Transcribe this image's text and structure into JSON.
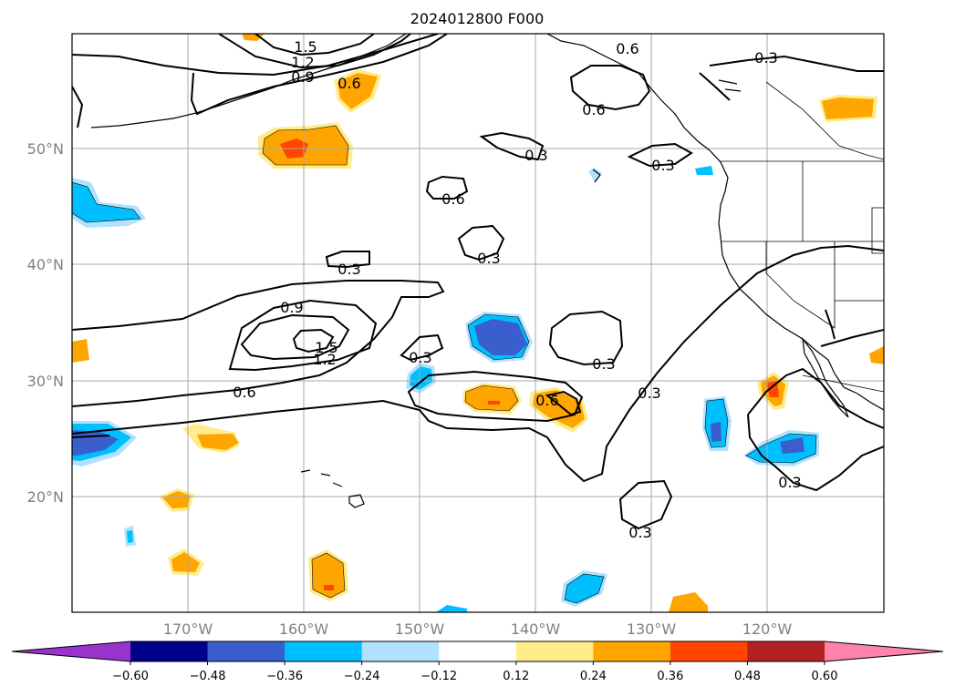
{
  "title": "2024012800 F000",
  "map": {
    "lat_labels": [
      "50°N",
      "40°N",
      "30°N",
      "20°N"
    ],
    "lon_labels": [
      "170°W",
      "160°W",
      "150°W",
      "140°W",
      "130°W",
      "120°W"
    ],
    "gridlines": true
  },
  "colorbar": {
    "orientation": "horizontal",
    "extend": "both",
    "ticks": [
      "−0.60",
      "−0.48",
      "−0.36",
      "−0.24",
      "−0.12",
      "0.12",
      "0.24",
      "0.36",
      "0.48",
      "0.60"
    ],
    "colors": [
      "#9933cc",
      "#00008b",
      "#3a5fcd",
      "#00bfff",
      "#b0e2ff",
      "#ffffff",
      "#ffec8b",
      "#ffa500",
      "#ff4500",
      "#b22222",
      "#ff82ab"
    ]
  },
  "contours": {
    "line_color": "#000000",
    "labels": [
      "1.5",
      "1.2",
      "0.9",
      "0.6",
      "0.6",
      "0.6",
      "0.3",
      "0.6",
      "0.3",
      "0.3",
      "0.3",
      "0.9",
      "1.5",
      "1.2",
      "0.3",
      "0.6",
      "0.3",
      "0.6",
      "0.3",
      "0.3",
      "0.3",
      "0.3"
    ]
  }
}
